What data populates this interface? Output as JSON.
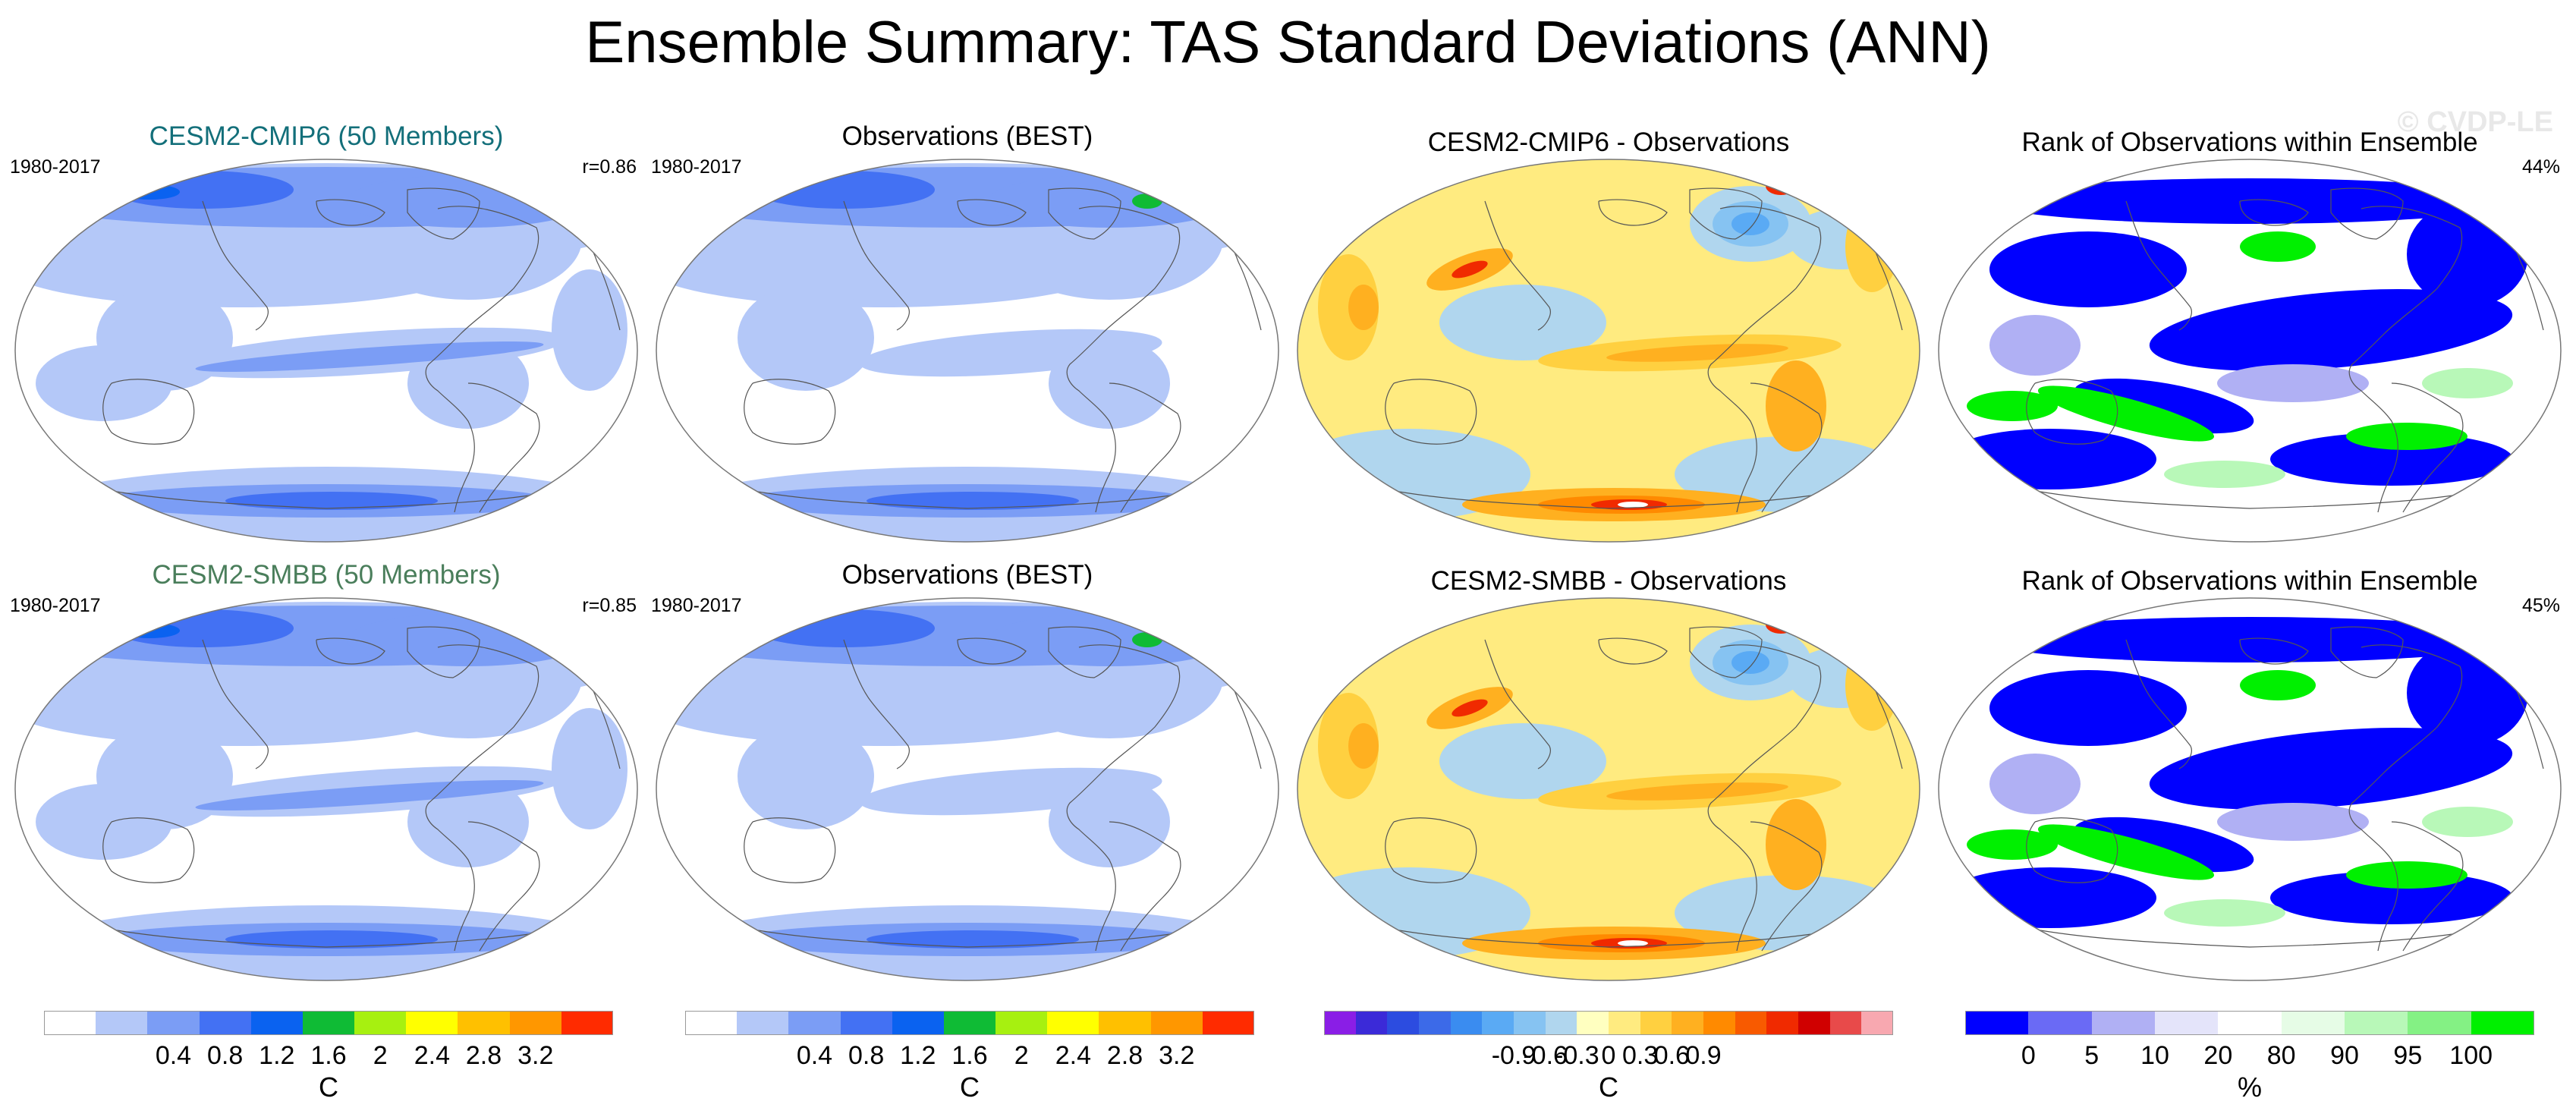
{
  "title": "Ensemble Summary: TAS Standard Deviations (ANN)",
  "watermark": "© CVDP-LE",
  "rows": [
    {
      "panels": [
        {
          "title": "CESM2-CMIP6 (50 Members)",
          "left": "1980-2017",
          "right": "r=0.86",
          "kind": "sd",
          "title_color": "#136f7a"
        },
        {
          "title": "Observations (BEST)",
          "left": "1980-2017",
          "right": "",
          "kind": "sd_obs"
        },
        {
          "title": "CESM2-CMIP6 - Observations",
          "left": "",
          "right": "",
          "kind": "diff"
        },
        {
          "title": "Rank of Observations within Ensemble",
          "left": "",
          "right": "44%",
          "kind": "rank"
        }
      ]
    },
    {
      "panels": [
        {
          "title": "CESM2-SMBB (50 Members)",
          "left": "1980-2017",
          "right": "r=0.85",
          "kind": "sd",
          "title_color": "#4a7e5b"
        },
        {
          "title": "Observations (BEST)",
          "left": "1980-2017",
          "right": "",
          "kind": "sd_obs"
        },
        {
          "title": "CESM2-SMBB - Observations",
          "left": "",
          "right": "",
          "kind": "diff"
        },
        {
          "title": "Rank of Observations within Ensemble",
          "left": "",
          "right": "45%",
          "kind": "rank"
        }
      ]
    }
  ],
  "colorbars": [
    {
      "unit": "C",
      "colors": [
        "#ffffff",
        "#b4c8f8",
        "#7b9df5",
        "#4371f3",
        "#0a62f0",
        "#0fbb35",
        "#a7f010",
        "#ffff00",
        "#ffc000",
        "#ff9700",
        "#ff2b00"
      ],
      "labels": [
        "0.4",
        "0.8",
        "1.2",
        "1.6",
        "2",
        "2.4",
        "2.8",
        "3.2"
      ]
    },
    {
      "unit": "C",
      "colors": [
        "#ffffff",
        "#b4c8f8",
        "#7b9df5",
        "#4371f3",
        "#0a62f0",
        "#0fbb35",
        "#a7f010",
        "#ffff00",
        "#ffc000",
        "#ff9700",
        "#ff2b00"
      ],
      "labels": [
        "0.4",
        "0.8",
        "1.2",
        "1.6",
        "2",
        "2.4",
        "2.8",
        "3.2"
      ]
    },
    {
      "unit": "C",
      "colors": [
        "#8a1ee6",
        "#3b2ad8",
        "#2c4ce0",
        "#3c6ae8",
        "#3a8cf0",
        "#5aaaf4",
        "#86c3f2",
        "#b0d6ee",
        "#ffffc0",
        "#ffeb80",
        "#ffd040",
        "#ffb020",
        "#ff8a00",
        "#f85a00",
        "#f02a00",
        "#d00000",
        "#e84a4a",
        "#f8a8b0"
      ],
      "labels": [
        "-0.9",
        "-0.6",
        "-0.3",
        "0",
        "0.3",
        "0.6",
        "0.9"
      ]
    },
    {
      "unit": "%",
      "colors": [
        "#0000ff",
        "#6a6af5",
        "#b0b0f4",
        "#e4e4fa",
        "#ffffff",
        "#e6fce6",
        "#b8f8b8",
        "#84f184",
        "#00f000"
      ],
      "labels": [
        "0",
        "5",
        "10",
        "20",
        "80",
        "90",
        "95",
        "100"
      ]
    }
  ]
}
